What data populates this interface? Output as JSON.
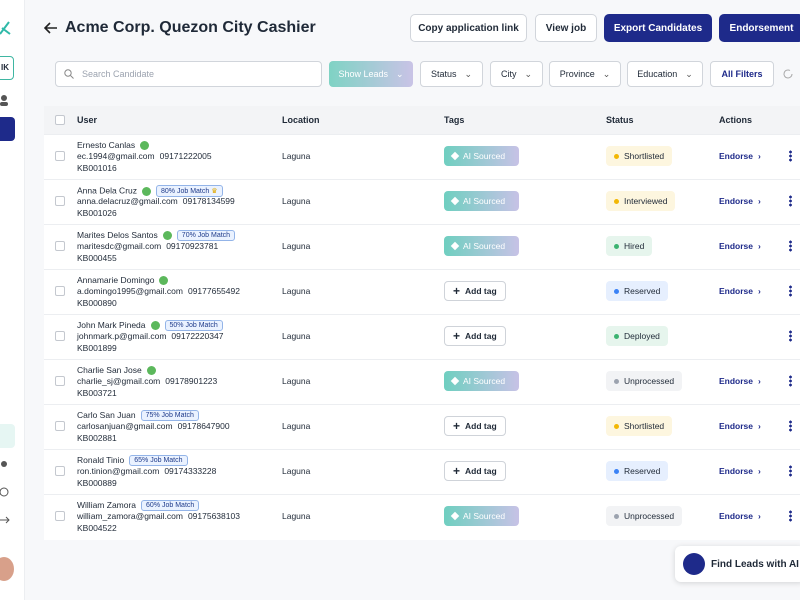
{
  "sidebar": {
    "badge": "IK"
  },
  "header": {
    "title": "Acme Corp. Quezon City Cashier",
    "buttons": [
      "Copy application link",
      "View job",
      "Export Candidates",
      "Endorsement"
    ]
  },
  "filters": {
    "search_placeholder": "Search Candidate",
    "show_leads": "Show Leads",
    "dropdowns": [
      "Status",
      "City",
      "Province",
      "Education"
    ],
    "all_filters": "All Filters"
  },
  "table": {
    "columns": [
      "User",
      "Location",
      "Tags",
      "Status",
      "Actions"
    ],
    "rows": [
      {
        "name": "Ernesto Canlas",
        "verified": true,
        "email": "ec.1994@gmail.com",
        "phone": "09171222005",
        "id": "KB001016",
        "location": "Laguna",
        "tag": "AI Sourced",
        "ai": true,
        "status": "Shortlisted",
        "status_color": "#f2b705",
        "action": "Endorse"
      },
      {
        "name": "Anna Dela Cruz",
        "verified": true,
        "match": "80% Job Match",
        "top": true,
        "email": "anna.delacruz@gmail.com",
        "phone": "09178134599",
        "id": "KB001026",
        "location": "Laguna",
        "tag": "AI Sourced",
        "ai": true,
        "status": "Interviewed",
        "status_color": "#f2b705",
        "action": "Endorse"
      },
      {
        "name": "Marites Delos Santos",
        "verified": true,
        "match": "70% Job Match",
        "email": "maritesdc@gmail.com",
        "phone": "09170923781",
        "id": "KB000455",
        "location": "Laguna",
        "tag": "AI Sourced",
        "ai": true,
        "status": "Hired",
        "status_color": "#3cb371",
        "action": "Endorse"
      },
      {
        "name": "Annamarie Domingo",
        "verified": true,
        "email": "a.domingo1995@gmail.com",
        "phone": "09177655492",
        "id": "KB000890",
        "location": "Laguna",
        "tag": "Add tag",
        "ai": false,
        "status": "Reserved",
        "status_color": "#3b82f6",
        "action": "Endorse"
      },
      {
        "name": "John Mark Pineda",
        "verified": true,
        "match": "50% Job Match",
        "email": "johnmark.p@gmail.com",
        "phone": "09172220347",
        "id": "KB001899",
        "location": "Laguna",
        "tag": "Add tag",
        "ai": false,
        "status": "Deployed",
        "status_color": "#3cb371"
      },
      {
        "name": "Charlie San Jose",
        "verified": true,
        "email": "charlie_sj@gmail.com",
        "phone": "09178901223",
        "id": "KB003721",
        "location": "Laguna",
        "tag": "AI Sourced",
        "ai": true,
        "status": "Unprocessed",
        "status_color": "#9ca3af",
        "action": "Endorse"
      },
      {
        "name": "Carlo San Juan",
        "verified": false,
        "match": "75% Job Match",
        "email": "carlosanjuan@gmail.com",
        "phone": "09178647900",
        "id": "KB002881",
        "location": "Laguna",
        "tag": "Add tag",
        "ai": false,
        "status": "Shortlisted",
        "status_color": "#f2b705",
        "action": "Endorse"
      },
      {
        "name": "Ronald Tinio",
        "verified": false,
        "match": "65% Job Match",
        "email": "ron.tinion@gmail.com",
        "phone": "09174333228",
        "id": "KB000889",
        "location": "Laguna",
        "tag": "Add tag",
        "ai": false,
        "status": "Reserved",
        "status_color": "#3b82f6",
        "action": "Endorse"
      },
      {
        "name": "William Zamora",
        "verified": false,
        "match": "60% Job Match",
        "email": "william_zamora@gmail.com",
        "phone": "09175638103",
        "id": "KB004522",
        "location": "Laguna",
        "tag": "AI Sourced",
        "ai": true,
        "status": "Unprocessed",
        "status_color": "#9ca3af",
        "action": "Endorse"
      }
    ]
  },
  "ai_button": "Find Leads with AI"
}
